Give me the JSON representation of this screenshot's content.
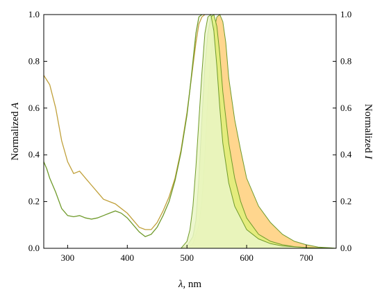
{
  "chart_data": {
    "type": "line",
    "xlabel_symbol": "λ",
    "xlabel_unit": ", nm",
    "ylabel_left_text": "Normalized ",
    "ylabel_left_symbol": "A",
    "ylabel_right_text": "Normalized ",
    "ylabel_right_symbol": "I",
    "xlim": [
      260,
      750
    ],
    "ylim": [
      0,
      1
    ],
    "x_ticks": [
      300,
      400,
      500,
      600,
      700
    ],
    "y_ticks_left": [
      "0.0",
      "0.2",
      "0.4",
      "0.6",
      "0.8",
      "1.0"
    ],
    "y_ticks_right": [
      "0.0",
      "0.2",
      "0.4",
      "0.6",
      "0.8",
      "1.0"
    ],
    "grid": false,
    "legend": "none",
    "colors": {
      "olive_line": "#c0a03a",
      "green_line": "#6f9a2b",
      "orange_fill": "#ffcf7a",
      "yellow_fill": "#dff07a",
      "light_fill": "#eaf6c6"
    },
    "series": [
      {
        "role": "absorption",
        "axis": "left",
        "color": "olive_line",
        "x": [
          260,
          265,
          270,
          280,
          290,
          300,
          310,
          320,
          330,
          340,
          350,
          360,
          370,
          380,
          390,
          400,
          410,
          420,
          430,
          440,
          450,
          460,
          470,
          480,
          490,
          500,
          505,
          510,
          515,
          520,
          525,
          530
        ],
        "y": [
          0.74,
          0.72,
          0.7,
          0.6,
          0.46,
          0.37,
          0.32,
          0.33,
          0.3,
          0.27,
          0.24,
          0.21,
          0.2,
          0.19,
          0.17,
          0.15,
          0.12,
          0.09,
          0.08,
          0.08,
          0.11,
          0.16,
          0.22,
          0.3,
          0.42,
          0.58,
          0.68,
          0.78,
          0.88,
          0.96,
          0.99,
          1.0
        ]
      },
      {
        "role": "absorption",
        "axis": "left",
        "color": "green_line",
        "x": [
          260,
          265,
          270,
          280,
          290,
          300,
          310,
          320,
          330,
          340,
          350,
          360,
          370,
          380,
          390,
          400,
          410,
          420,
          430,
          440,
          450,
          460,
          470,
          480,
          490,
          500,
          505,
          510,
          515,
          520,
          525
        ],
        "y": [
          0.37,
          0.34,
          0.3,
          0.24,
          0.17,
          0.14,
          0.135,
          0.14,
          0.13,
          0.125,
          0.13,
          0.14,
          0.15,
          0.16,
          0.15,
          0.13,
          0.1,
          0.07,
          0.05,
          0.06,
          0.09,
          0.14,
          0.2,
          0.29,
          0.41,
          0.57,
          0.68,
          0.8,
          0.92,
          0.99,
          1.0
        ]
      },
      {
        "role": "emission",
        "axis": "right",
        "color": "orange_fill",
        "x": [
          500,
          510,
          520,
          525,
          530,
          535,
          540,
          545,
          550,
          555,
          560,
          565,
          570,
          580,
          590,
          600,
          620,
          640,
          660,
          680,
          700,
          720,
          740,
          750
        ],
        "y": [
          0.0,
          0.02,
          0.1,
          0.2,
          0.4,
          0.65,
          0.82,
          0.93,
          0.99,
          1.0,
          0.97,
          0.88,
          0.73,
          0.55,
          0.42,
          0.3,
          0.18,
          0.11,
          0.06,
          0.03,
          0.015,
          0.005,
          0.002,
          0.0
        ]
      },
      {
        "role": "emission",
        "axis": "right",
        "color": "yellow_fill",
        "x": [
          490,
          500,
          510,
          515,
          520,
          525,
          530,
          535,
          540,
          545,
          550,
          555,
          560,
          570,
          580,
          590,
          600,
          620,
          640,
          660,
          680,
          700,
          720,
          750
        ],
        "y": [
          0.0,
          0.01,
          0.05,
          0.12,
          0.3,
          0.55,
          0.78,
          0.92,
          0.99,
          1.0,
          0.95,
          0.83,
          0.67,
          0.45,
          0.3,
          0.2,
          0.13,
          0.06,
          0.03,
          0.015,
          0.007,
          0.003,
          0.001,
          0.0
        ]
      },
      {
        "role": "emission",
        "axis": "right",
        "color": "light_fill",
        "x": [
          490,
          500,
          505,
          510,
          515,
          520,
          525,
          530,
          535,
          540,
          545,
          550,
          555,
          560,
          570,
          580,
          600,
          620,
          640,
          660,
          700,
          750
        ],
        "y": [
          0.0,
          0.03,
          0.08,
          0.18,
          0.35,
          0.55,
          0.75,
          0.92,
          0.99,
          1.0,
          0.93,
          0.78,
          0.6,
          0.45,
          0.28,
          0.18,
          0.08,
          0.04,
          0.02,
          0.01,
          0.003,
          0.0
        ]
      }
    ]
  }
}
